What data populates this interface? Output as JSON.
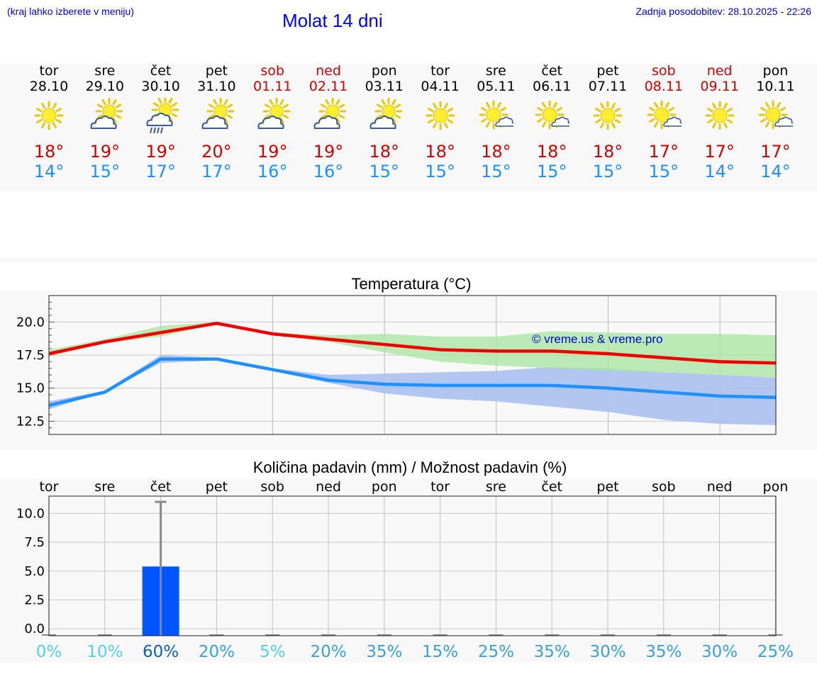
{
  "header": {
    "location_note": "(kraj lahko izberete v meniju)",
    "title": "Molat 14 dni",
    "last_update": "Zadnja posodobitev: 28.10.2025 - 22:26"
  },
  "days": [
    {
      "name": "tor",
      "date": "28.10",
      "weekend": false,
      "icon": "sun-icon",
      "max": "18°",
      "min": "14°"
    },
    {
      "name": "sre",
      "date": "29.10",
      "weekend": false,
      "icon": "sun-cloud-icon",
      "max": "19°",
      "min": "15°"
    },
    {
      "name": "čet",
      "date": "30.10",
      "weekend": false,
      "icon": "sun-cloud-rain-icon",
      "max": "19°",
      "min": "17°"
    },
    {
      "name": "pet",
      "date": "31.10",
      "weekend": false,
      "icon": "sun-cloud-icon",
      "max": "20°",
      "min": "17°"
    },
    {
      "name": "sob",
      "date": "01.11",
      "weekend": true,
      "icon": "sun-cloud-icon",
      "max": "19°",
      "min": "16°"
    },
    {
      "name": "ned",
      "date": "02.11",
      "weekend": true,
      "icon": "sun-cloud-icon",
      "max": "19°",
      "min": "16°"
    },
    {
      "name": "pon",
      "date": "03.11",
      "weekend": false,
      "icon": "sun-cloud-icon",
      "max": "18°",
      "min": "15°"
    },
    {
      "name": "tor",
      "date": "04.11",
      "weekend": false,
      "icon": "sun-icon",
      "max": "18°",
      "min": "15°"
    },
    {
      "name": "sre",
      "date": "05.11",
      "weekend": false,
      "icon": "sun-small-cloud-icon",
      "max": "18°",
      "min": "15°"
    },
    {
      "name": "čet",
      "date": "06.11",
      "weekend": false,
      "icon": "sun-small-cloud-icon",
      "max": "18°",
      "min": "15°"
    },
    {
      "name": "pet",
      "date": "07.11",
      "weekend": false,
      "icon": "sun-icon",
      "max": "18°",
      "min": "15°"
    },
    {
      "name": "sob",
      "date": "08.11",
      "weekend": true,
      "icon": "sun-small-cloud-icon",
      "max": "17°",
      "min": "15°"
    },
    {
      "name": "ned",
      "date": "09.11",
      "weekend": true,
      "icon": "sun-icon",
      "max": "17°",
      "min": "14°"
    },
    {
      "name": "pon",
      "date": "10.11",
      "weekend": false,
      "icon": "sun-small-cloud-icon",
      "max": "17°",
      "min": "14°"
    }
  ],
  "colors": {
    "max_line": "#ee0000",
    "min_line": "#1e90ff",
    "max_band": "#a8e6a0",
    "min_band": "#a8c0f0",
    "bar": "#0055ff",
    "error_bar": "#888888",
    "prob_low": "#55d0e6",
    "prob_mid": "#3aa0d8",
    "prob_high": "#1060b0"
  },
  "chart_data": [
    {
      "type": "line",
      "title": "Temperatura (°C)",
      "x": [
        0,
        1,
        2,
        3,
        4,
        5,
        6,
        7,
        8,
        9,
        10,
        11,
        12,
        13
      ],
      "ylim": [
        11.5,
        22.0
      ],
      "yticks": [
        "20.0",
        "17.5",
        "15.0",
        "12.5"
      ],
      "ytick_values": [
        20.0,
        17.5,
        15.0,
        12.5
      ],
      "watermark": "© vreme.us & vreme.pro",
      "series": [
        {
          "name": "max",
          "values": [
            17.6,
            18.5,
            19.2,
            19.9,
            19.1,
            18.7,
            18.3,
            17.9,
            17.8,
            17.8,
            17.6,
            17.3,
            17.0,
            16.9
          ],
          "band_low": [
            17.4,
            18.4,
            18.9,
            19.8,
            19.0,
            18.5,
            17.7,
            17.0,
            16.7,
            16.5,
            16.3,
            16.2,
            16.0,
            15.8
          ],
          "band_high": [
            17.9,
            18.7,
            19.7,
            20.0,
            19.2,
            19.0,
            19.1,
            18.9,
            18.9,
            19.3,
            19.2,
            19.1,
            19.1,
            19.0
          ]
        },
        {
          "name": "min",
          "values": [
            13.7,
            14.7,
            17.2,
            17.2,
            16.4,
            15.6,
            15.3,
            15.2,
            15.2,
            15.2,
            15.0,
            14.7,
            14.4,
            14.3
          ],
          "band_low": [
            13.4,
            14.7,
            16.9,
            17.1,
            16.3,
            15.4,
            14.6,
            14.2,
            14.0,
            13.6,
            13.2,
            12.6,
            12.3,
            12.2
          ],
          "band_high": [
            14.0,
            14.8,
            17.5,
            17.3,
            16.5,
            16.0,
            16.1,
            16.2,
            16.3,
            16.6,
            16.5,
            16.2,
            16.0,
            15.8
          ]
        }
      ]
    },
    {
      "type": "bar",
      "title": "Količina padavin (mm) / Možnost padavin (%)",
      "categories": [
        "tor",
        "sre",
        "čet",
        "pet",
        "sob",
        "ned",
        "pon",
        "tor",
        "sre",
        "čet",
        "pet",
        "sob",
        "ned",
        "pon"
      ],
      "values": [
        0,
        0,
        5.4,
        0,
        0,
        0,
        0,
        0,
        0,
        0,
        0,
        0,
        0,
        0
      ],
      "error_high": [
        0,
        0,
        11.0,
        0,
        0,
        0,
        0,
        0,
        0,
        0,
        0,
        0,
        0,
        0
      ],
      "ylim": [
        -0.6,
        11.5
      ],
      "yticks": [
        "10.0",
        "7.5",
        "5.0",
        "2.5",
        "0.0"
      ],
      "ytick_values": [
        10.0,
        7.5,
        5.0,
        2.5,
        0.0
      ],
      "probabilities": [
        "0%",
        "10%",
        "60%",
        "20%",
        "5%",
        "20%",
        "35%",
        "15%",
        "25%",
        "35%",
        "30%",
        "35%",
        "30%",
        "25%"
      ],
      "prob_values": [
        0,
        10,
        60,
        20,
        5,
        20,
        35,
        15,
        25,
        35,
        30,
        35,
        30,
        25
      ]
    }
  ]
}
